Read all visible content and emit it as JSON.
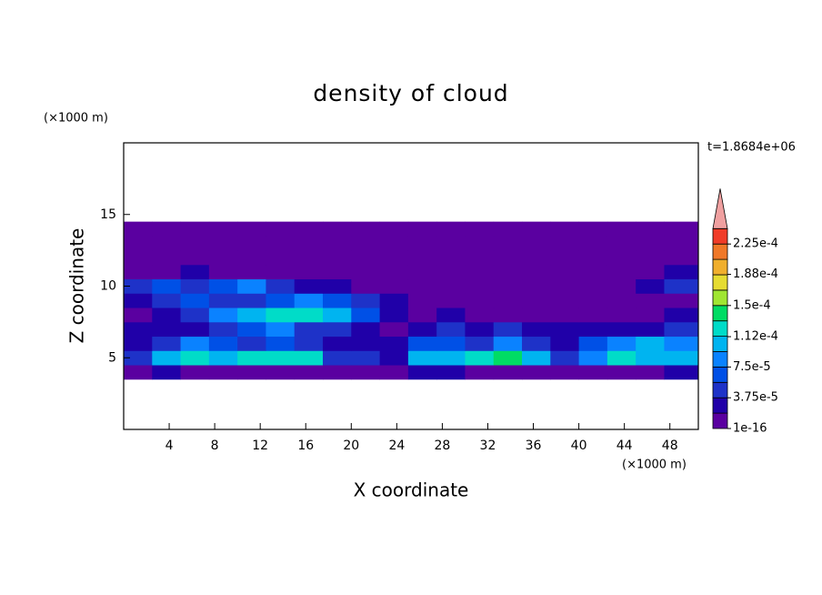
{
  "chart_data": {
    "type": "contour",
    "title": "density of cloud",
    "x_label": "X coordinate",
    "y_label": "Z coordinate",
    "x_unit": "(×1000 m)",
    "y_unit": "(×1000 m)",
    "annotation": "t=1.8684e+06",
    "xlim": [
      0,
      50.5
    ],
    "ylim": [
      0,
      20
    ],
    "xticks": [
      4,
      8,
      12,
      16,
      20,
      24,
      28,
      32,
      36,
      40,
      44,
      48
    ],
    "yticks": [
      5,
      10,
      15
    ],
    "x_edges": [
      0,
      2.5,
      5,
      7.5,
      10,
      12.5,
      15,
      17.5,
      20,
      22.5,
      25,
      27.5,
      30,
      32.5,
      35,
      37.5,
      40,
      42.5,
      45,
      47.5,
      50.5
    ],
    "z_edges": [
      3.5,
      4.5,
      5.5,
      6.5,
      7.5,
      8.5,
      9.5,
      10.5,
      11.5,
      12.5,
      13.5,
      14.5
    ],
    "z": [
      [
        1e-16,
        2.5e-05,
        1e-16,
        1e-16,
        1e-16,
        1e-16,
        1e-16,
        1e-16,
        1e-16,
        1e-16,
        2.5e-05,
        2.5e-05,
        1e-16,
        1e-16,
        1e-16,
        1e-16,
        1e-16,
        1e-16,
        1e-16,
        2.5e-05
      ],
      [
        4.5e-05,
        0.0001,
        0.00012,
        0.0001,
        0.00012,
        0.00012,
        0.00012,
        4.5e-05,
        4.5e-05,
        2.5e-05,
        0.0001,
        0.0001,
        0.00012,
        0.00014,
        0.0001,
        4.5e-05,
        8e-05,
        0.00012,
        0.0001,
        0.0001
      ],
      [
        2.5e-05,
        4.5e-05,
        8e-05,
        6.5e-05,
        4.5e-05,
        6.5e-05,
        4.5e-05,
        2.5e-05,
        2.5e-05,
        2.5e-05,
        6.5e-05,
        6.5e-05,
        4.5e-05,
        8e-05,
        4.5e-05,
        2.5e-05,
        6.5e-05,
        8e-05,
        0.0001,
        8e-05
      ],
      [
        2.5e-05,
        2.5e-05,
        2.5e-05,
        4.5e-05,
        6.5e-05,
        8e-05,
        4.5e-05,
        4.5e-05,
        2.5e-05,
        1e-16,
        2.5e-05,
        4.5e-05,
        2.5e-05,
        4.5e-05,
        2.5e-05,
        2.5e-05,
        2.5e-05,
        2.5e-05,
        2.5e-05,
        4.5e-05
      ],
      [
        1e-16,
        2.5e-05,
        4.5e-05,
        8e-05,
        0.0001,
        0.00012,
        0.00012,
        0.0001,
        6.5e-05,
        2.5e-05,
        1e-16,
        2.5e-05,
        1e-16,
        1e-16,
        1e-16,
        1e-16,
        1e-16,
        1e-16,
        1e-16,
        2.5e-05
      ],
      [
        2.5e-05,
        4.5e-05,
        6.5e-05,
        4.5e-05,
        4.5e-05,
        6.5e-05,
        8e-05,
        6.5e-05,
        4.5e-05,
        2.5e-05,
        1e-16,
        1e-16,
        1e-16,
        1e-16,
        1e-16,
        1e-16,
        1e-16,
        1e-16,
        1e-16,
        1e-16
      ],
      [
        4.5e-05,
        6.5e-05,
        4.5e-05,
        6.5e-05,
        8e-05,
        4.5e-05,
        2.5e-05,
        2.5e-05,
        1e-16,
        1e-16,
        1e-16,
        1e-16,
        1e-16,
        1e-16,
        1e-16,
        1e-16,
        1e-16,
        1e-16,
        2.5e-05,
        4.5e-05
      ],
      [
        1e-16,
        1e-16,
        2.5e-05,
        1e-16,
        1e-16,
        1e-16,
        1e-16,
        1e-16,
        1e-16,
        1e-16,
        1e-16,
        1e-16,
        1e-16,
        1e-16,
        1e-16,
        1e-16,
        1e-16,
        1e-16,
        1e-16,
        2.5e-05
      ],
      [
        1e-16,
        1e-16,
        1e-16,
        1e-16,
        1e-16,
        1e-16,
        1e-16,
        1e-16,
        1e-16,
        1e-16,
        1e-16,
        1e-16,
        1e-16,
        1e-16,
        1e-16,
        1e-16,
        1e-16,
        1e-16,
        1e-16,
        1e-16
      ],
      [
        1e-16,
        1e-16,
        1e-16,
        1e-16,
        1e-16,
        1e-16,
        1e-16,
        1e-16,
        1e-16,
        1e-16,
        1e-16,
        1e-16,
        1e-16,
        1e-16,
        1e-16,
        1e-16,
        1e-16,
        1e-16,
        1e-16,
        1e-16
      ],
      [
        1e-16,
        1e-16,
        1e-16,
        1e-16,
        1e-16,
        1e-16,
        1e-16,
        1e-16,
        1e-16,
        1e-16,
        1e-16,
        1e-16,
        1e-16,
        1e-16,
        1e-16,
        1e-16,
        1e-16,
        1e-16,
        1e-16,
        1e-16
      ]
    ],
    "levels": [
      1e-16,
      1.875e-05,
      3.75e-05,
      5.625e-05,
      7.5e-05,
      9.375e-05,
      0.0001125,
      0.00013125,
      0.00015,
      0.00016875,
      0.0001875,
      0.00020625,
      0.000225,
      0.00024375
    ],
    "colors": [
      "#5a00a0",
      "#2000a8",
      "#1e32c8",
      "#0050e6",
      "#0a82ff",
      "#00b4f0",
      "#00dcc8",
      "#00dc64",
      "#a0e632",
      "#e6dc32",
      "#f0af2d",
      "#f07828",
      "#f03c28"
    ],
    "over_color": "#f0a0a0",
    "colorbar_ticks": [
      1e-16,
      {
        "value": 3.75e-05,
        "label": "3.75e-5"
      },
      {
        "value": 7.5e-05,
        "label": "7.5e-5"
      },
      {
        "value": 0.000112,
        "label": "1.12e-4"
      },
      {
        "value": 0.00015,
        "label": "1.5e-4"
      },
      {
        "value": 0.000188,
        "label": "1.88e-4"
      },
      {
        "value": 0.000225,
        "label": "2.25e-4"
      }
    ]
  }
}
